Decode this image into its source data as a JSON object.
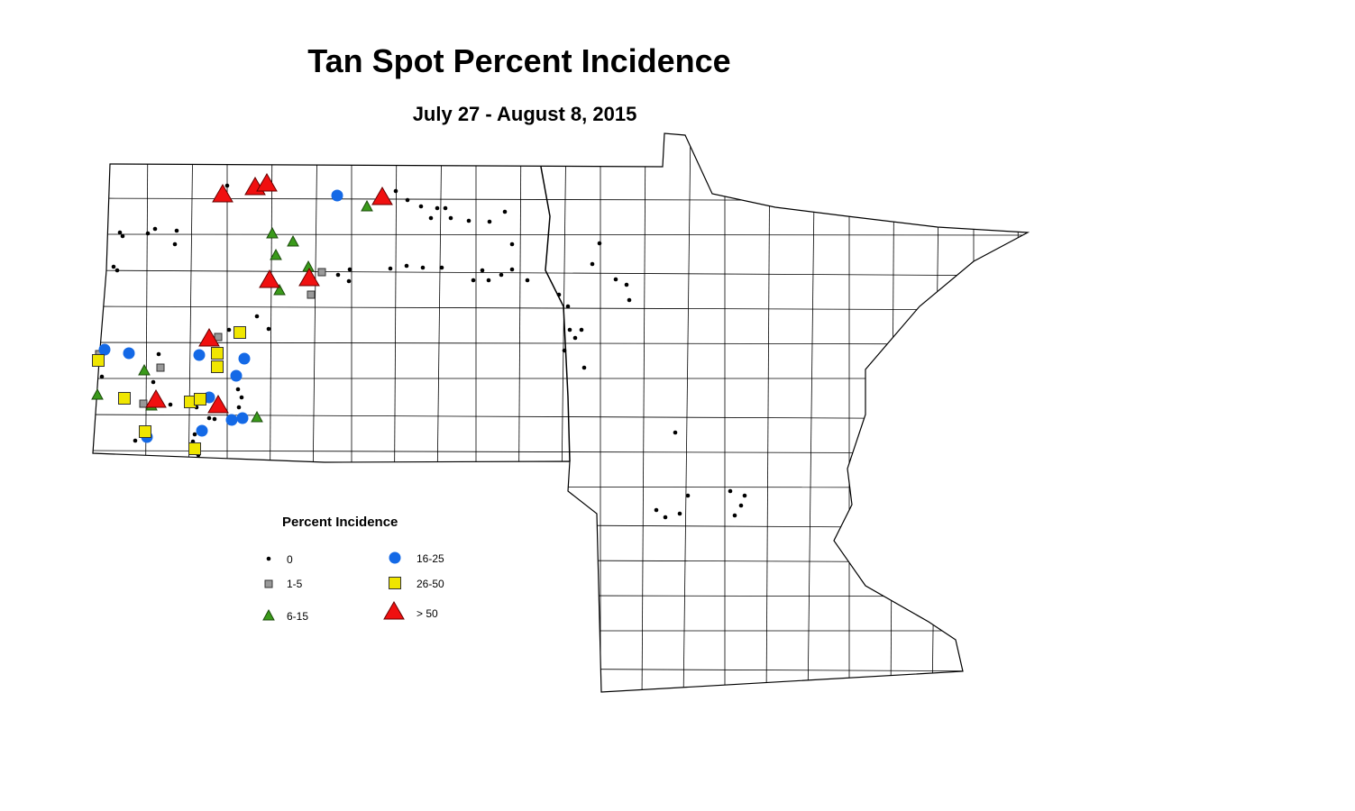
{
  "title": "Tan Spot Percent Incidence",
  "subtitle": "July 27 - August 8, 2015",
  "legend": {
    "title": "Percent Incidence",
    "items": [
      {
        "label": "0"
      },
      {
        "label": "1-5"
      },
      {
        "label": "6-15"
      },
      {
        "label": "16-25"
      },
      {
        "label": "26-50"
      },
      {
        "label": "> 50"
      }
    ]
  }
}
